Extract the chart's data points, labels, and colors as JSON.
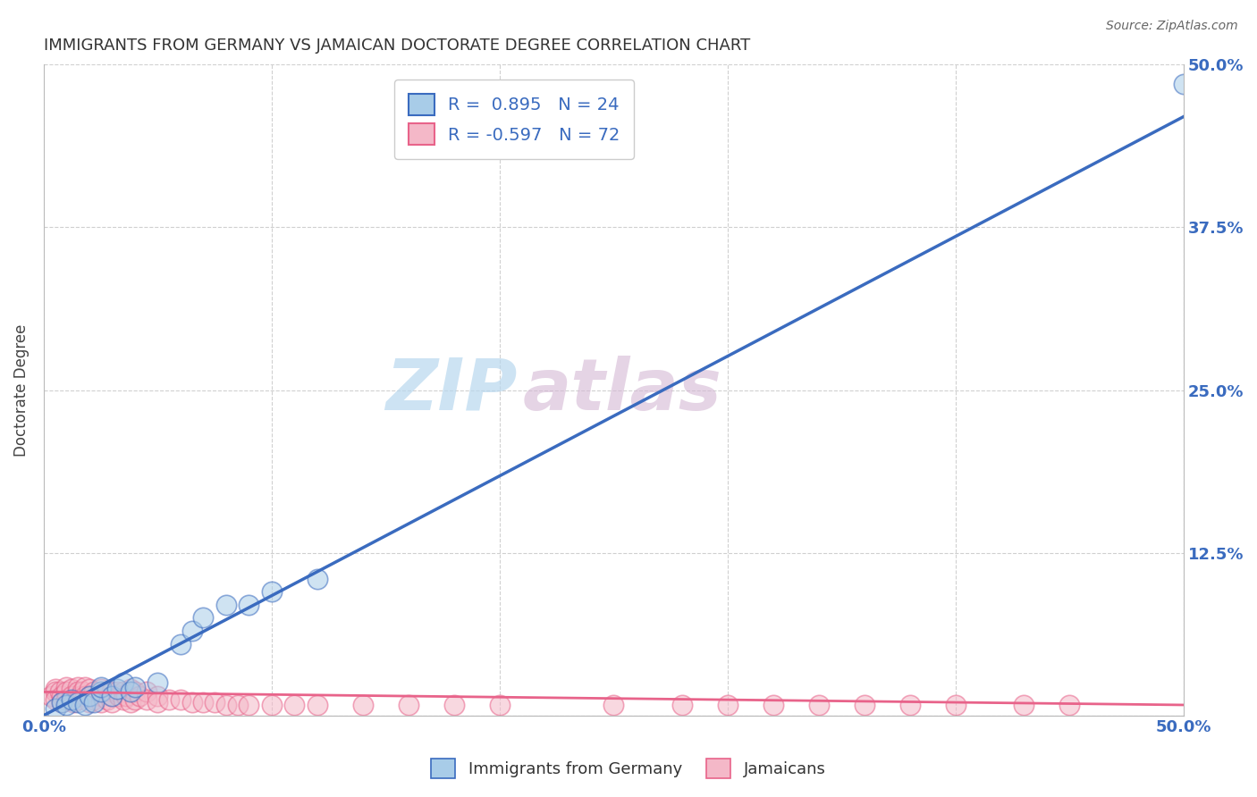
{
  "title": "IMMIGRANTS FROM GERMANY VS JAMAICAN DOCTORATE DEGREE CORRELATION CHART",
  "source": "Source: ZipAtlas.com",
  "ylabel": "Doctorate Degree",
  "legend_blue_r": "R =  0.895",
  "legend_blue_n": "N = 24",
  "legend_pink_r": "R = -0.597",
  "legend_pink_n": "N = 72",
  "blue_color": "#a8cce8",
  "pink_color": "#f4b8c8",
  "blue_line_color": "#3a6bbf",
  "pink_line_color": "#e8638a",
  "watermark_zip": "ZIP",
  "watermark_atlas": "atlas",
  "background_color": "#ffffff",
  "grid_color": "#d0d0d0",
  "blue_scatter_x": [
    0.005,
    0.008,
    0.01,
    0.012,
    0.015,
    0.018,
    0.02,
    0.022,
    0.025,
    0.025,
    0.03,
    0.032,
    0.035,
    0.038,
    0.04,
    0.05,
    0.06,
    0.065,
    0.07,
    0.08,
    0.09,
    0.1,
    0.12,
    0.5
  ],
  "blue_scatter_y": [
    0.005,
    0.01,
    0.008,
    0.012,
    0.01,
    0.008,
    0.015,
    0.01,
    0.018,
    0.022,
    0.015,
    0.02,
    0.025,
    0.018,
    0.022,
    0.025,
    0.055,
    0.065,
    0.075,
    0.085,
    0.085,
    0.095,
    0.105,
    0.485
  ],
  "pink_scatter_x": [
    0.003,
    0.005,
    0.005,
    0.005,
    0.007,
    0.008,
    0.008,
    0.01,
    0.01,
    0.01,
    0.012,
    0.012,
    0.013,
    0.015,
    0.015,
    0.015,
    0.016,
    0.017,
    0.018,
    0.018,
    0.02,
    0.02,
    0.02,
    0.022,
    0.022,
    0.025,
    0.025,
    0.025,
    0.028,
    0.028,
    0.03,
    0.03,
    0.03,
    0.032,
    0.033,
    0.035,
    0.035,
    0.036,
    0.038,
    0.038,
    0.04,
    0.04,
    0.042,
    0.045,
    0.045,
    0.05,
    0.05,
    0.055,
    0.06,
    0.065,
    0.07,
    0.075,
    0.08,
    0.085,
    0.09,
    0.1,
    0.11,
    0.12,
    0.14,
    0.16,
    0.18,
    0.2,
    0.25,
    0.28,
    0.3,
    0.32,
    0.34,
    0.36,
    0.38,
    0.4,
    0.43,
    0.45
  ],
  "pink_scatter_y": [
    0.015,
    0.02,
    0.018,
    0.012,
    0.018,
    0.015,
    0.01,
    0.022,
    0.018,
    0.012,
    0.02,
    0.015,
    0.01,
    0.022,
    0.018,
    0.012,
    0.015,
    0.018,
    0.022,
    0.015,
    0.02,
    0.015,
    0.01,
    0.018,
    0.012,
    0.02,
    0.015,
    0.01,
    0.018,
    0.012,
    0.018,
    0.015,
    0.01,
    0.018,
    0.015,
    0.018,
    0.012,
    0.015,
    0.02,
    0.01,
    0.018,
    0.012,
    0.015,
    0.018,
    0.012,
    0.015,
    0.01,
    0.012,
    0.012,
    0.01,
    0.01,
    0.01,
    0.008,
    0.008,
    0.008,
    0.008,
    0.008,
    0.008,
    0.008,
    0.008,
    0.008,
    0.008,
    0.008,
    0.008,
    0.008,
    0.008,
    0.008,
    0.008,
    0.008,
    0.008,
    0.008,
    0.008
  ],
  "blue_line_x": [
    0.0,
    0.5
  ],
  "blue_line_y": [
    0.0,
    0.46
  ],
  "pink_line_x": [
    0.0,
    0.5
  ],
  "pink_line_y": [
    0.018,
    0.008
  ],
  "xlim": [
    0.0,
    0.5
  ],
  "ylim": [
    0.0,
    0.5
  ],
  "yticks": [
    0.0,
    0.125,
    0.25,
    0.375,
    0.5
  ],
  "yticklabels_right": [
    "",
    "12.5%",
    "25.0%",
    "37.5%",
    "50.0%"
  ]
}
